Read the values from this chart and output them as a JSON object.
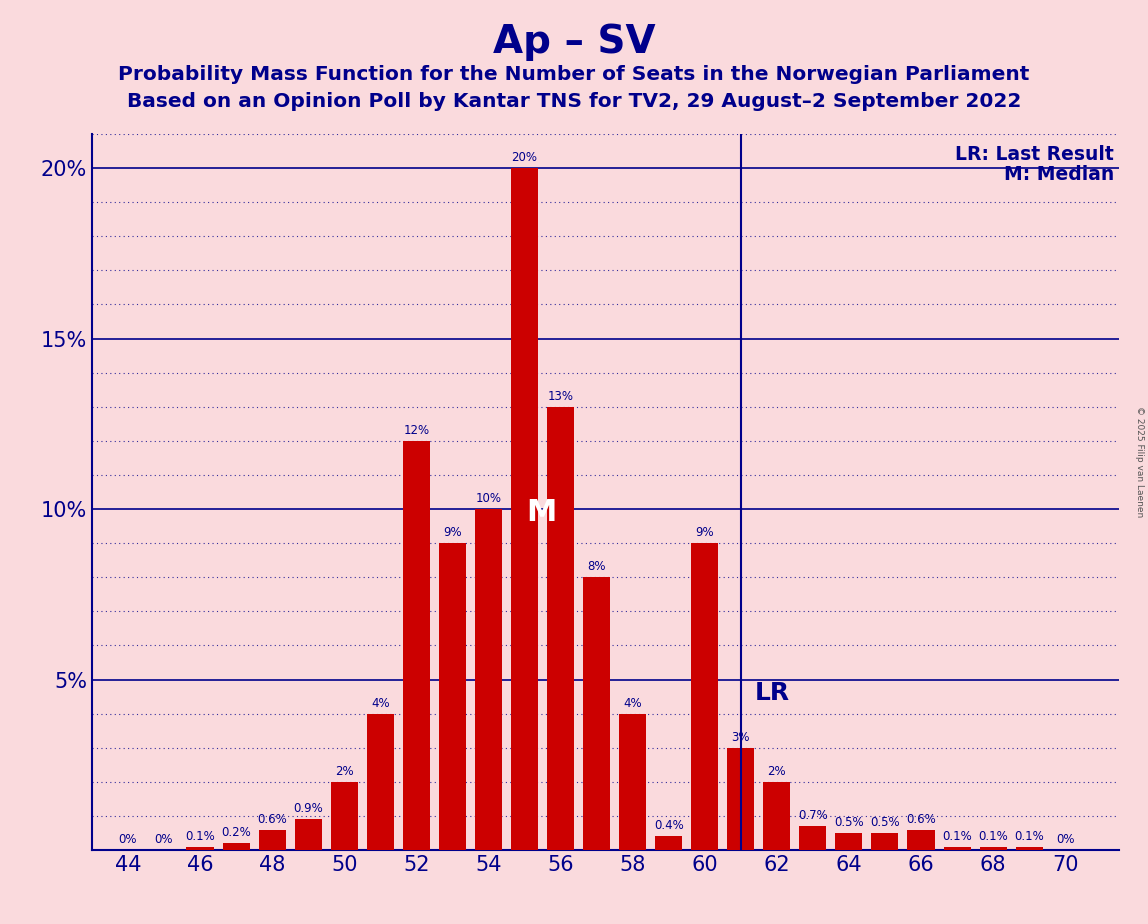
{
  "title": "Ap – SV",
  "subtitle1": "Probability Mass Function for the Number of Seats in the Norwegian Parliament",
  "subtitle2": "Based on an Opinion Poll by Kantar TNS for TV2, 29 August–2 September 2022",
  "copyright": "© 2025 Filip van Laenen",
  "seats": [
    44,
    45,
    46,
    47,
    48,
    49,
    50,
    51,
    52,
    53,
    54,
    55,
    56,
    57,
    58,
    59,
    60,
    61,
    62,
    63,
    64,
    65,
    66,
    67,
    68,
    69,
    70
  ],
  "probabilities": [
    0.0,
    0.0,
    0.1,
    0.2,
    0.6,
    0.9,
    2.0,
    4.0,
    12.0,
    9.0,
    10.0,
    20.0,
    13.0,
    8.0,
    4.0,
    0.4,
    9.0,
    3.0,
    2.0,
    0.7,
    0.5,
    0.5,
    0.6,
    0.1,
    0.1,
    0.1,
    0.0
  ],
  "bar_color": "#cc0000",
  "background_color": "#fadadd",
  "title_color": "#00008b",
  "label_color": "#00008b",
  "grid_major_color": "#00008b",
  "grid_minor_color": "#00008b",
  "median_seat": 55,
  "lr_seat": 61,
  "ylim_max": 21,
  "yticks": [
    5,
    10,
    15,
    20
  ],
  "xlim": [
    43.0,
    71.5
  ],
  "xticks": [
    44,
    46,
    48,
    50,
    52,
    54,
    56,
    58,
    60,
    62,
    64,
    66,
    68,
    70
  ],
  "bar_width": 0.75,
  "label_fontsize": 8.5,
  "title_fontsize": 28,
  "subtitle_fontsize": 14.5,
  "tick_label_fontsize": 15,
  "legend_fontsize": 13.5,
  "m_label_fontsize": 22,
  "lr_label_fontsize": 18
}
